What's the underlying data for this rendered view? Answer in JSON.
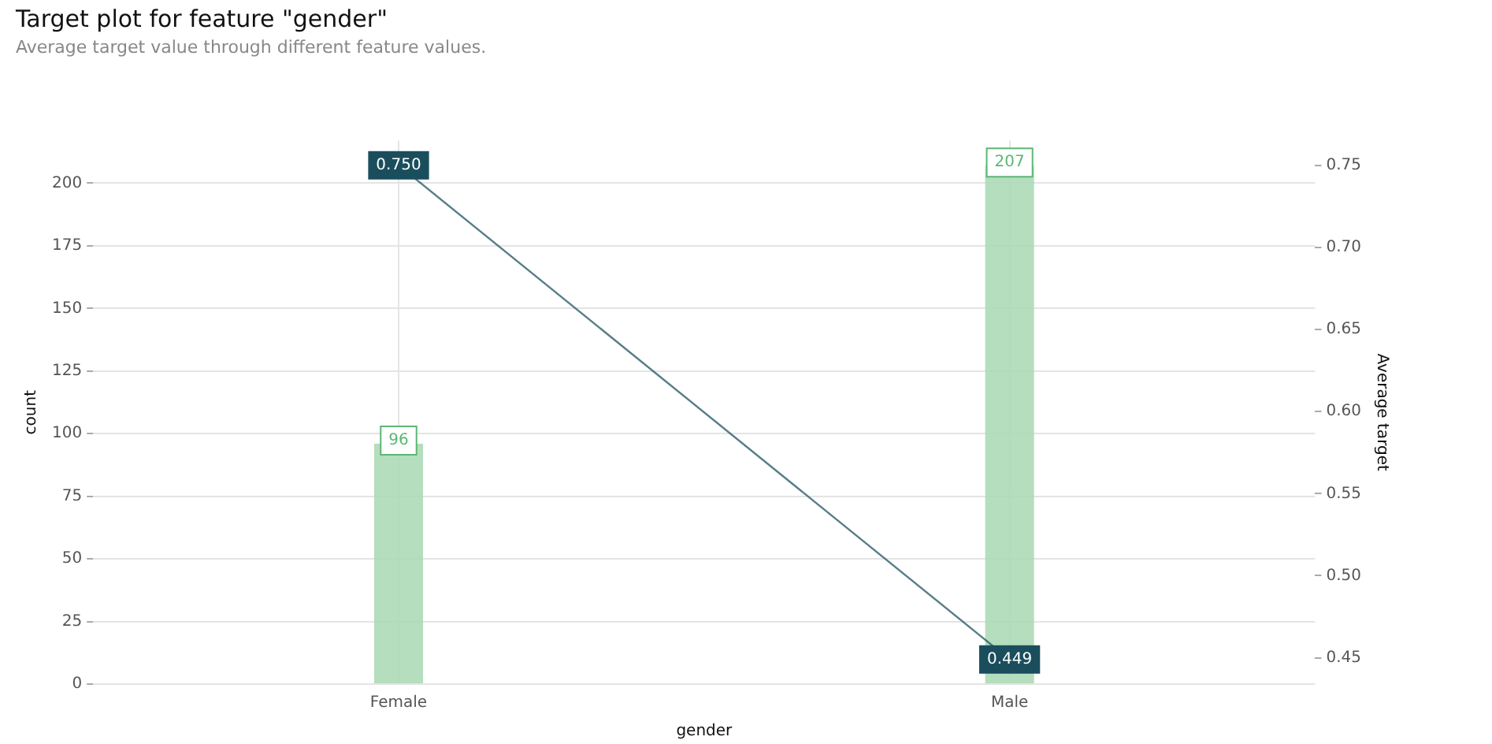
{
  "chart_data": {
    "type": "bar",
    "title": "Target plot for feature \"gender\"",
    "subtitle": "Average target value through different feature values.",
    "xlabel": "gender",
    "ylabel": "count",
    "y2label": "Average target",
    "categories": [
      "Female",
      "Male"
    ],
    "series": [
      {
        "color": "#a9d9b4",
        "values": [
          96,
          207
        ]
      },
      {
        "type": "line",
        "axis": "y2",
        "color": "#1a4e5d",
        "marker": "square",
        "values": [
          0.75,
          0.449
        ],
        "value_labels": [
          "0.750",
          "0.449"
        ]
      }
    ],
    "ylim": [
      0,
      217
    ],
    "yticks": [
      0,
      25,
      50,
      75,
      100,
      125,
      150,
      175,
      200
    ],
    "y2lim": [
      0.434,
      0.765
    ],
    "y2ticks": [
      {
        "value": 0.45,
        "label": "0.45"
      },
      {
        "value": 0.5,
        "label": "0.50"
      },
      {
        "value": 0.55,
        "label": "0.55"
      },
      {
        "value": 0.6,
        "label": "0.60"
      },
      {
        "value": 0.65,
        "label": "0.65"
      },
      {
        "value": 0.7,
        "label": "0.70"
      },
      {
        "value": 0.75,
        "label": "0.75"
      }
    ],
    "grid": true,
    "legend": false,
    "data_labels": true
  }
}
